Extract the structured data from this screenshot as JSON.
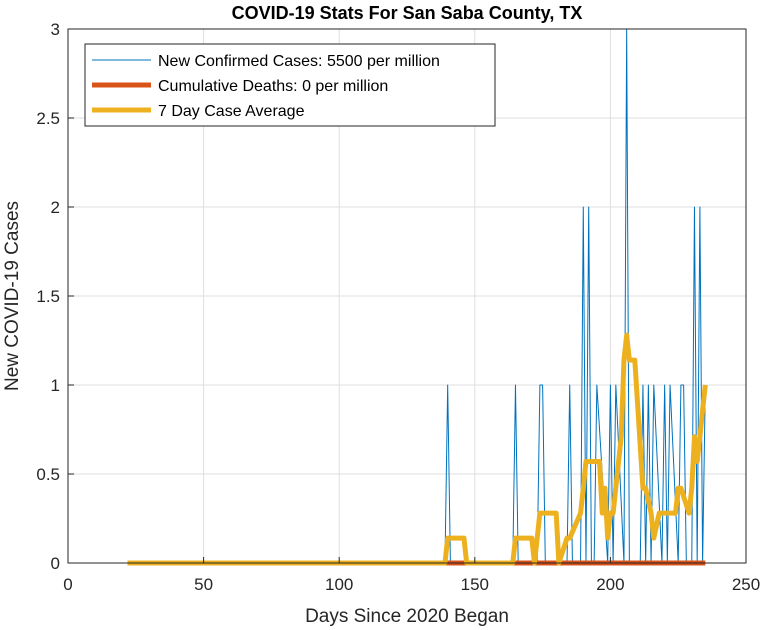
{
  "chart_data": {
    "type": "line",
    "title": "COVID-19 Stats For San Saba County, TX",
    "xlabel": "Days Since 2020 Began",
    "ylabel": "New COVID-19 Cases",
    "xlim": [
      0,
      250
    ],
    "ylim": [
      0,
      3
    ],
    "xticks": [
      "0",
      "50",
      "100",
      "150",
      "200",
      "250"
    ],
    "yticks": [
      "0",
      "0.5",
      "1",
      "1.5",
      "2",
      "2.5",
      "3"
    ],
    "grid": true,
    "legend_position": "top-left",
    "series": [
      {
        "name": "New Confirmed Cases: 5500 per million",
        "color": "#0072BD",
        "x": [
          22,
          139,
          140,
          141,
          164,
          165,
          166,
          173,
          174,
          175,
          176,
          184,
          185,
          186,
          189,
          190,
          191,
          192,
          193,
          194,
          195,
          199,
          200,
          201,
          202,
          205,
          206,
          207,
          211,
          212,
          213,
          214,
          215,
          216,
          219,
          220,
          221,
          222,
          225,
          226,
          227,
          228,
          230,
          231,
          232,
          233,
          234,
          235
        ],
        "y": [
          0,
          0,
          1,
          0,
          0,
          1,
          0,
          0,
          1,
          1,
          0,
          0,
          1,
          0,
          0,
          2,
          0,
          2,
          0,
          0,
          1,
          0,
          1,
          0,
          1,
          0,
          3,
          0,
          0,
          1,
          0,
          1,
          0,
          1,
          0,
          1,
          0,
          1,
          0,
          1,
          1,
          0,
          0,
          2,
          0,
          2,
          0,
          1
        ]
      },
      {
        "name": "Cumulative Deaths: 0 per million",
        "color": "#D95319",
        "x": [
          22,
          235
        ],
        "y": [
          0,
          0
        ]
      },
      {
        "name": "7 Day Case Average",
        "color": "#EDB120",
        "x": [
          22,
          139,
          140,
          141,
          146,
          147,
          164,
          165,
          171,
          172,
          173,
          174,
          175,
          180,
          181,
          184,
          185,
          189,
          190,
          191,
          192,
          196,
          197,
          198,
          199,
          200,
          201,
          204,
          205,
          206,
          207,
          209,
          212,
          213,
          215,
          216,
          218,
          219,
          224,
          225,
          226,
          229,
          230,
          231,
          232,
          233,
          234,
          235
        ],
        "y": [
          0,
          0,
          0.14,
          0.14,
          0.14,
          0,
          0,
          0.14,
          0.14,
          0,
          0.14,
          0.28,
          0.28,
          0.28,
          0,
          0.14,
          0.14,
          0.28,
          0.42,
          0.57,
          0.57,
          0.57,
          0.28,
          0.42,
          0.14,
          0.28,
          0.28,
          0.71,
          1.14,
          1.28,
          1.14,
          1.14,
          0.42,
          0.42,
          0.28,
          0.14,
          0.28,
          0.28,
          0.28,
          0.42,
          0.42,
          0.28,
          0.42,
          0.71,
          0.57,
          0.71,
          0.86,
          1.0
        ]
      }
    ]
  }
}
